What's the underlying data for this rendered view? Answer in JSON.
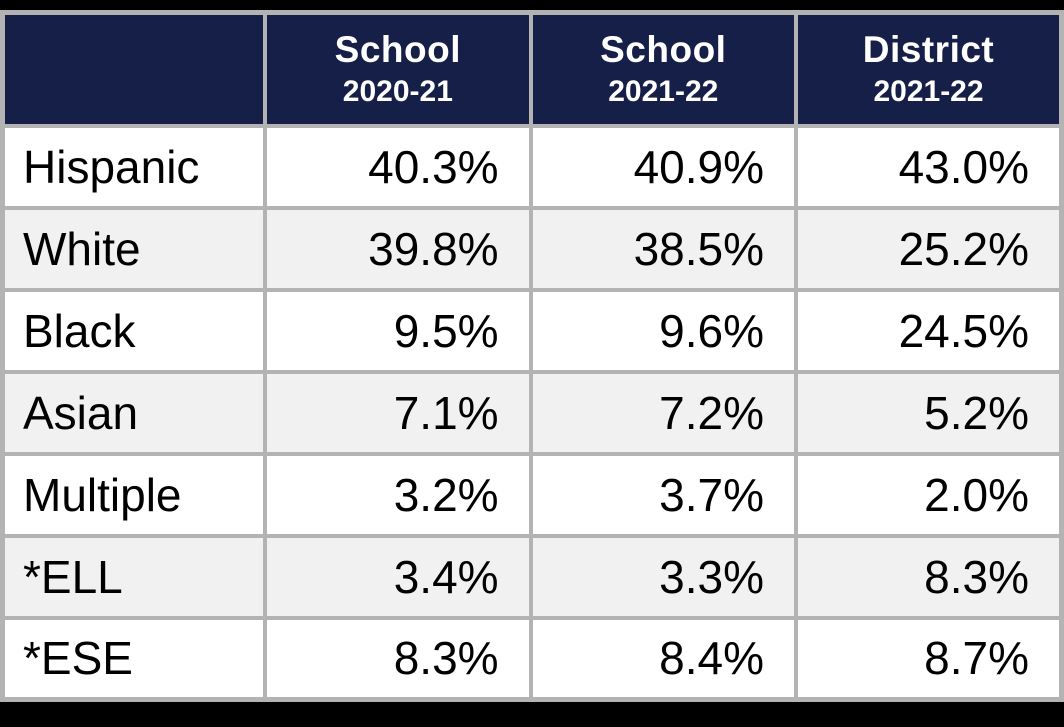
{
  "colors": {
    "header_bg": "#161F48",
    "header_text": "#FFFFFF",
    "border": "#B3B3B3",
    "row_bg": "#FFFFFF",
    "row_alt_bg": "#F1F1F1",
    "frame_bg": "#000000",
    "body_text": "#000000"
  },
  "table": {
    "corner_label": "",
    "headers": [
      {
        "title": "School",
        "subtitle": "2020-21"
      },
      {
        "title": "School",
        "subtitle": "2021-22"
      },
      {
        "title": "District",
        "subtitle": "2021-22"
      }
    ],
    "rows": [
      {
        "label": "Hispanic",
        "values": [
          "40.3%",
          "40.9%",
          "43.0%"
        ]
      },
      {
        "label": "White",
        "values": [
          "39.8%",
          "38.5%",
          "25.2%"
        ]
      },
      {
        "label": "Black",
        "values": [
          "9.5%",
          "9.6%",
          "24.5%"
        ]
      },
      {
        "label": "Asian",
        "values": [
          "7.1%",
          "7.2%",
          "5.2%"
        ]
      },
      {
        "label": "Multiple",
        "values": [
          "3.2%",
          "3.7%",
          "2.0%"
        ]
      },
      {
        "label": "*ELL",
        "values": [
          "3.4%",
          "3.3%",
          "8.3%"
        ]
      },
      {
        "label": "*ESE",
        "values": [
          "8.3%",
          "8.4%",
          "8.7%"
        ]
      }
    ]
  },
  "chart_data": {
    "type": "table",
    "columns": [
      "",
      "School 2020-21",
      "School 2021-22",
      "District 2021-22"
    ],
    "rows": [
      [
        "Hispanic",
        "40.3%",
        "40.9%",
        "43.0%"
      ],
      [
        "White",
        "39.8%",
        "38.5%",
        "25.2%"
      ],
      [
        "Black",
        "9.5%",
        "9.6%",
        "24.5%"
      ],
      [
        "Asian",
        "7.1%",
        "7.2%",
        "5.2%"
      ],
      [
        "Multiple",
        "3.2%",
        "3.7%",
        "2.0%"
      ],
      [
        "*ELL",
        "3.4%",
        "3.3%",
        "8.3%"
      ],
      [
        "*ESE",
        "8.3%",
        "8.4%",
        "8.7%"
      ]
    ]
  }
}
